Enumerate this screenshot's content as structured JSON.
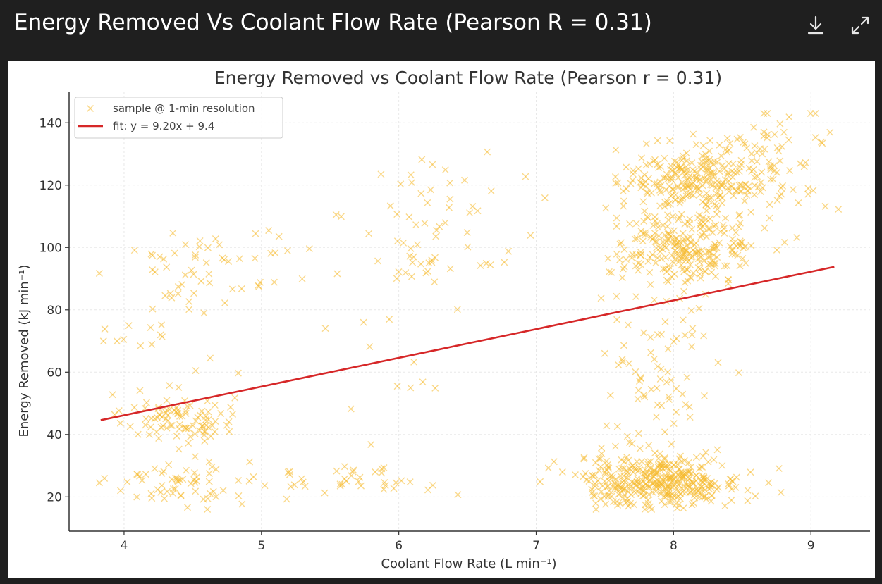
{
  "header": {
    "title": "Energy Removed Vs Coolant Flow Rate (Pearson R = 0.31)",
    "icons": [
      "download-icon",
      "expand-icon"
    ]
  },
  "chart_data": {
    "type": "scatter",
    "title": "Energy Removed vs Coolant Flow Rate (Pearson r = 0.31)",
    "xlabel": "Coolant Flow Rate (L min⁻¹)",
    "ylabel": "Energy Removed (kJ min⁻¹)",
    "xlim": [
      3.6,
      9.43
    ],
    "ylim": [
      9,
      150
    ],
    "xticks": [
      4,
      5,
      6,
      7,
      8,
      9
    ],
    "yticks": [
      20,
      40,
      60,
      80,
      100,
      120,
      140
    ],
    "grid": true,
    "legend_position": "top-left",
    "series": [
      {
        "name": "sample @ 1-min resolution",
        "type": "scatter",
        "marker": "x",
        "color": "#f5b92e",
        "clusters": [
          {
            "cx": 4.4,
            "cy": 45,
            "sx": 0.2,
            "sy": 4,
            "n": 90
          },
          {
            "cx": 4.4,
            "cy": 25,
            "sx": 0.25,
            "sy": 4,
            "n": 60
          },
          {
            "cx": 4.6,
            "cy": 95,
            "sx": 0.35,
            "sy": 8,
            "n": 50
          },
          {
            "cx": 4.3,
            "cy": 70,
            "sx": 0.3,
            "sy": 10,
            "n": 22
          },
          {
            "cx": 5.7,
            "cy": 25,
            "sx": 0.35,
            "sy": 2.5,
            "n": 40
          },
          {
            "cx": 6.3,
            "cy": 113,
            "sx": 0.3,
            "sy": 9,
            "n": 40
          },
          {
            "cx": 6.2,
            "cy": 95,
            "sx": 0.35,
            "sy": 6,
            "n": 25
          },
          {
            "cx": 6.0,
            "cy": 60,
            "sx": 0.35,
            "sy": 15,
            "n": 12
          },
          {
            "cx": 7.9,
            "cy": 25,
            "sx": 0.3,
            "sy": 4,
            "n": 380
          },
          {
            "cx": 8.1,
            "cy": 100,
            "sx": 0.25,
            "sy": 6,
            "n": 250
          },
          {
            "cx": 8.2,
            "cy": 122,
            "sx": 0.28,
            "sy": 5.5,
            "n": 280
          },
          {
            "cx": 7.9,
            "cy": 60,
            "sx": 0.22,
            "sy": 15,
            "n": 80
          },
          {
            "cx": 8.75,
            "cy": 132,
            "sx": 0.2,
            "sy": 5,
            "n": 25
          },
          {
            "cx": 8.9,
            "cy": 120,
            "sx": 0.2,
            "sy": 15,
            "n": 14
          }
        ]
      },
      {
        "name": "fit: y = 9.20x + 9.4",
        "type": "line",
        "color": "#d62728",
        "x": [
          3.83,
          9.17
        ],
        "y": [
          44.6,
          93.8
        ]
      }
    ]
  }
}
